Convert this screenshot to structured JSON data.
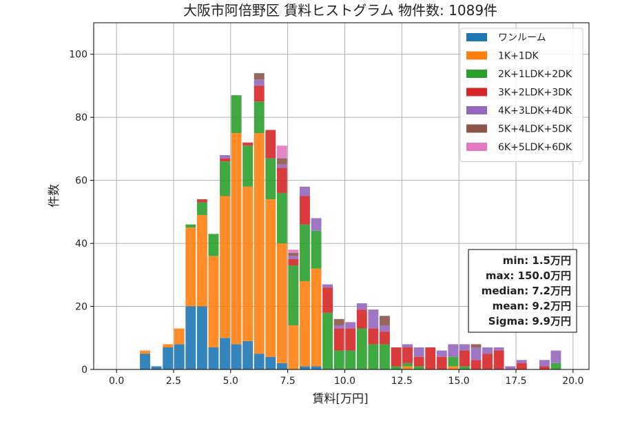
{
  "chart_data": {
    "type": "bar",
    "stacked": true,
    "title": "大阪市阿倍野区 賃料ヒストグラム  物件数: 1089件",
    "xlabel": "賃料[万円]",
    "ylabel": "件数",
    "xlim": [
      -1.0,
      20.7
    ],
    "ylim": [
      0,
      110
    ],
    "xticks": [
      0.0,
      2.5,
      5.0,
      7.5,
      10.0,
      12.5,
      15.0,
      17.5,
      20.0
    ],
    "xtick_labels": [
      "0.0",
      "2.5",
      "5.0",
      "7.5",
      "10.0",
      "12.5",
      "15.0",
      "17.5",
      "20.0"
    ],
    "yticks": [
      0,
      20,
      40,
      60,
      80,
      100
    ],
    "ytick_labels": [
      "0",
      "20",
      "40",
      "60",
      "80",
      "100"
    ],
    "grid": true,
    "legend_position": "top-right",
    "bin_start": 1.25,
    "bin_width": 0.5,
    "series": [
      {
        "name": "ワンルーム",
        "color": "#1f77b4",
        "values": [
          5,
          1,
          7,
          8,
          20,
          20,
          7,
          10,
          8,
          9,
          5,
          4,
          2,
          0,
          1,
          1,
          0,
          0,
          0,
          0,
          0,
          0,
          0,
          0,
          0,
          0,
          0,
          0,
          0,
          0,
          0,
          0,
          0,
          0,
          0,
          0,
          0
        ]
      },
      {
        "name": "1K+1DK",
        "color": "#ff7f0e",
        "values": [
          1,
          0,
          1,
          5,
          25,
          29,
          29,
          45,
          67,
          49,
          70,
          50,
          38,
          14,
          27,
          31,
          0,
          0,
          0,
          0,
          0,
          0,
          0,
          1,
          0,
          0,
          0,
          1,
          0,
          0,
          0,
          0,
          0,
          0,
          0,
          0,
          0
        ]
      },
      {
        "name": "2K+1LDK+2DK",
        "color": "#2ca02c",
        "values": [
          0,
          0,
          0,
          0,
          1,
          4,
          7,
          11,
          12,
          13,
          10,
          13,
          16,
          19,
          18,
          12,
          18,
          6,
          6,
          13,
          8,
          8,
          1,
          1,
          1,
          0,
          0,
          3,
          1,
          0,
          0,
          0,
          0,
          0,
          0,
          0,
          2
        ]
      },
      {
        "name": "3K+2LDK+3DK",
        "color": "#d62728",
        "values": [
          0,
          0,
          0,
          0,
          0,
          1,
          0,
          1,
          0,
          1,
          5,
          9,
          8,
          2,
          9,
          0,
          8,
          7,
          7,
          6,
          5,
          4,
          6,
          5,
          3,
          7,
          4,
          0,
          5,
          3,
          5,
          6,
          0,
          2,
          0,
          1,
          0
        ]
      },
      {
        "name": "4K+3LDK+4DK",
        "color": "#9467bd",
        "values": [
          0,
          0,
          0,
          0,
          0,
          0,
          0,
          1,
          0,
          0,
          2,
          0,
          1,
          1,
          3,
          4,
          1,
          1,
          2,
          2,
          6,
          2,
          0,
          1,
          3,
          0,
          2,
          4,
          2,
          4,
          2,
          1,
          1,
          1,
          0,
          2,
          4
        ]
      },
      {
        "name": "5K+4LDK+5DK",
        "color": "#8c564b",
        "values": [
          0,
          0,
          0,
          0,
          0,
          0,
          0,
          0,
          0,
          0,
          2,
          0,
          2,
          1,
          0,
          0,
          0,
          2,
          0,
          0,
          0,
          3,
          0,
          0,
          0,
          0,
          0,
          0,
          0,
          1,
          0,
          0,
          0,
          0,
          0,
          0,
          0
        ]
      },
      {
        "name": "6K+5LDK+6DK",
        "color": "#e377c2",
        "values": [
          0,
          0,
          0,
          0,
          0,
          0,
          0,
          0,
          0,
          0,
          0,
          0,
          4,
          1,
          0,
          0,
          0,
          0,
          0,
          0,
          0,
          0,
          0,
          0,
          0,
          0,
          0,
          0,
          0,
          0,
          0,
          0,
          0,
          0,
          0,
          0,
          0
        ]
      }
    ],
    "stats": [
      "min: 1.5万円",
      "max: 150.0万円",
      "median: 7.2万円",
      "mean: 9.2万円",
      "Sigma: 9.9万円"
    ]
  }
}
